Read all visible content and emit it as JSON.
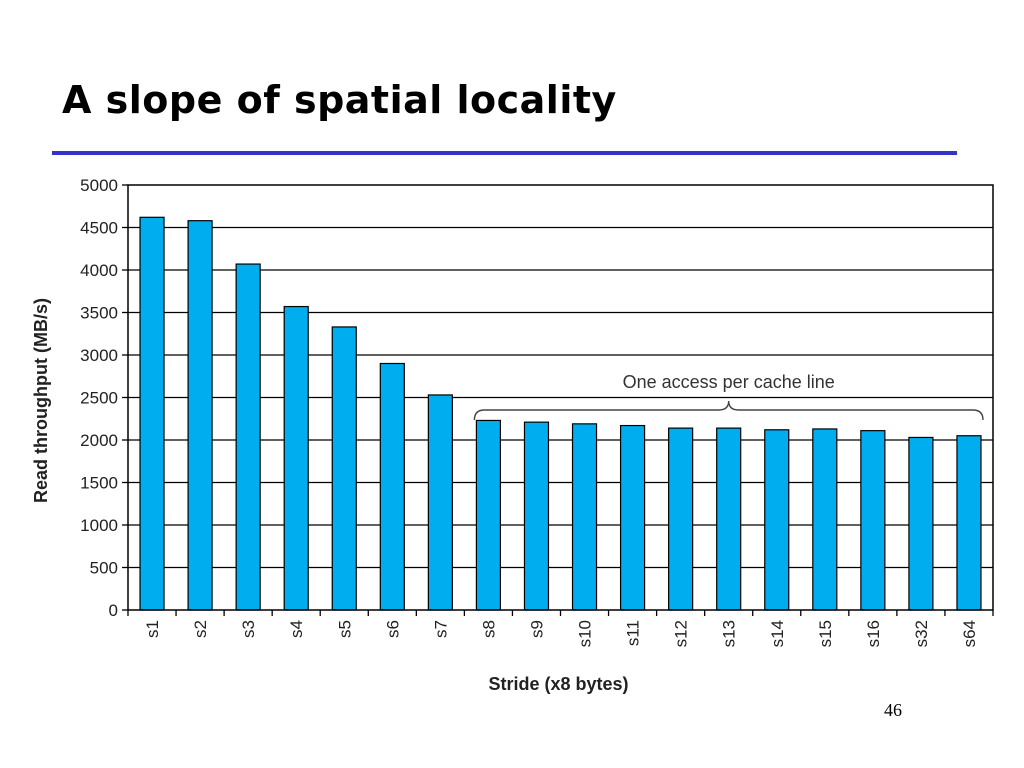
{
  "slide": {
    "title": "A slope of spatial locality",
    "page_number": "46"
  },
  "colors": {
    "title_rule": "#3333cc",
    "bar_fill": "#00aeef",
    "bar_stroke": "#000000",
    "gridline": "#000000"
  },
  "chart_data": {
    "type": "bar",
    "title": "",
    "xlabel": "Stride (x8 bytes)",
    "ylabel": "Read throughput (MB/s)",
    "ylim": [
      0,
      5000
    ],
    "yticks": [
      0,
      500,
      1000,
      1500,
      2000,
      2500,
      3000,
      3500,
      4000,
      4500,
      5000
    ],
    "grid": true,
    "categories": [
      "s1",
      "s2",
      "s3",
      "s4",
      "s5",
      "s6",
      "s7",
      "s8",
      "s9",
      "s10",
      "s11",
      "s12",
      "s13",
      "s14",
      "s15",
      "s16",
      "s32",
      "s64"
    ],
    "values": [
      4620,
      4580,
      4070,
      3570,
      3330,
      2900,
      2530,
      2230,
      2210,
      2190,
      2170,
      2140,
      2140,
      2120,
      2130,
      2110,
      2030,
      2050
    ],
    "annotation": {
      "text": "One access per cache line",
      "from_category": "s8",
      "to_category": "s64"
    }
  }
}
